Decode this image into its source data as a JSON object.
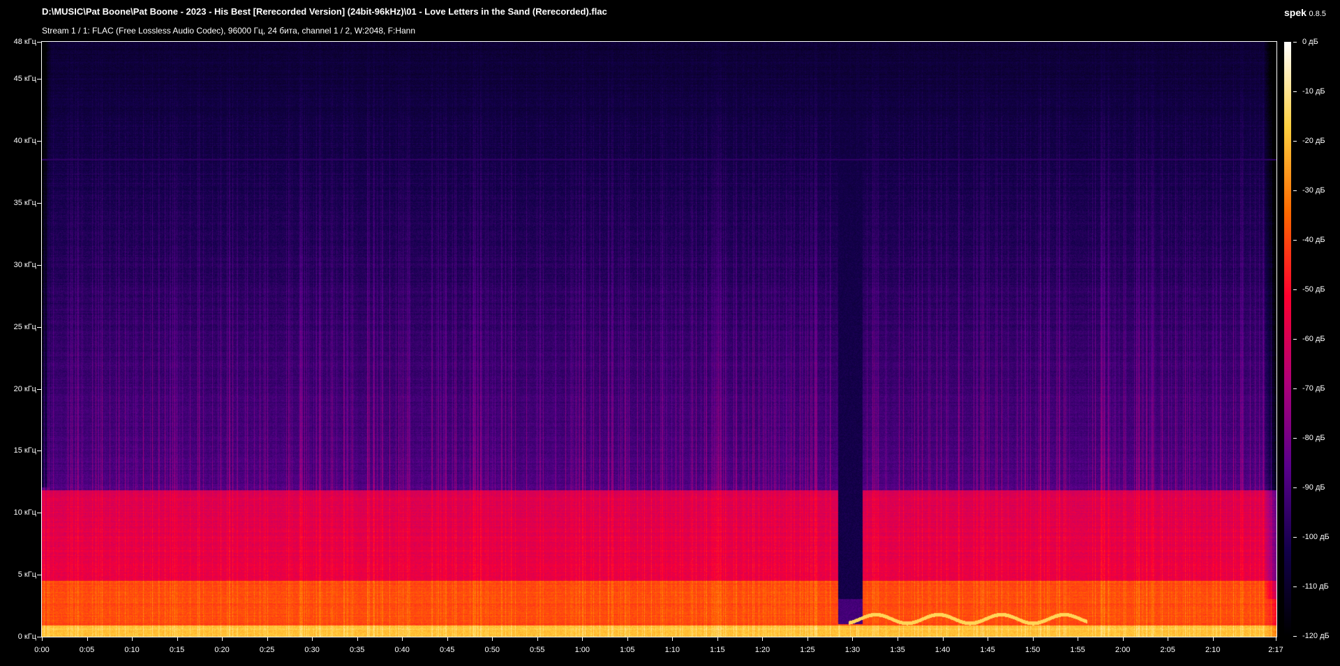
{
  "header": {
    "title": "D:\\MUSIC\\Pat Boone\\Pat Boone - 2023 - His Best [Rerecorded Version] (24bit-96kHz)\\01 - Love Letters in the Sand (Rerecorded).flac",
    "subtitle": "Stream 1 / 1: FLAC (Free Lossless Audio Codec), 96000 Гц, 24 бита, channel 1 / 2, W:2048, F:Hann",
    "app_name": "spek",
    "app_version": "0.8.5"
  },
  "chart_data": {
    "type": "heatmap",
    "x_range_seconds": [
      0,
      137
    ],
    "y_range_khz": [
      0,
      48
    ],
    "color_range_db": [
      -120,
      0
    ],
    "colormap": [
      "#000000",
      "#12004a",
      "#5a008c",
      "#b0007a",
      "#ff0030",
      "#ff6a00",
      "#ffd040",
      "#ffffff"
    ],
    "y_ticks": [
      "0 кГц",
      "5 кГц",
      "10 кГц",
      "15 кГц",
      "20 кГц",
      "25 кГц",
      "30 кГц",
      "35 кГц",
      "40 кГц",
      "45 кГц",
      "48 кГц"
    ],
    "y_tick_values": [
      0,
      5,
      10,
      15,
      20,
      25,
      30,
      35,
      40,
      45,
      48
    ],
    "x_ticks": [
      "0:00",
      "0:05",
      "0:10",
      "0:15",
      "0:20",
      "0:25",
      "0:30",
      "0:35",
      "0:40",
      "0:45",
      "0:50",
      "0:55",
      "1:00",
      "1:05",
      "1:10",
      "1:15",
      "1:20",
      "1:25",
      "1:30",
      "1:35",
      "1:40",
      "1:45",
      "1:50",
      "1:55",
      "2:00",
      "2:05",
      "2:10",
      "2:17"
    ],
    "x_tick_values": [
      0,
      5,
      10,
      15,
      20,
      25,
      30,
      35,
      40,
      45,
      50,
      55,
      60,
      65,
      70,
      75,
      80,
      85,
      90,
      95,
      100,
      105,
      110,
      115,
      120,
      125,
      130,
      137
    ],
    "db_ticks": [
      "0 дБ",
      "-10 дБ",
      "-20 дБ",
      "-30 дБ",
      "-40 дБ",
      "-50 дБ",
      "-60 дБ",
      "-70 дБ",
      "-80 дБ",
      "-90 дБ",
      "-100 дБ",
      "-110 дБ",
      "-120 дБ"
    ],
    "db_tick_values": [
      0,
      -10,
      -20,
      -30,
      -40,
      -50,
      -60,
      -70,
      -80,
      -90,
      -100,
      -110,
      -120
    ]
  }
}
